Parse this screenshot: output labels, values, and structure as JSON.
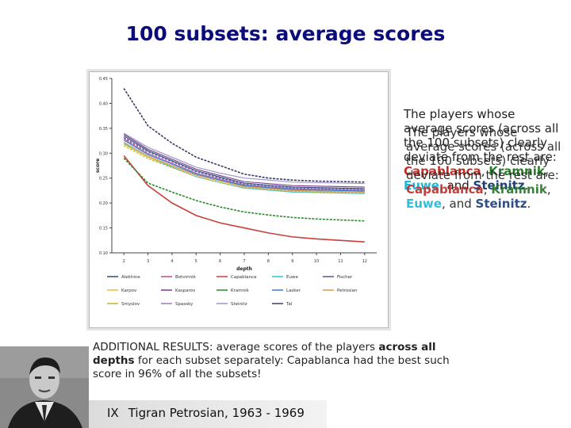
{
  "title": "100 subsets: average scores",
  "side_text": {
    "intro": "The players whose average scores (across all the 100 subsets) clearly deviate from the rest are:",
    "player1": "Capablanca",
    "sep1": ",",
    "player2": "Kramnik",
    "sep2": ",",
    "player3": "Euwe",
    "sep3": ", and",
    "player4": "Steinitz",
    "end": "."
  },
  "additional": {
    "part1": "ADDITIONAL RESULTS: average scores of the players ",
    "bold": "across all depths",
    "part2": " for each subset separately: Capablanca had the best such score in 96% of all the subsets!"
  },
  "caption": {
    "roman": "IX",
    "text": "Tigran Petrosian, 1963 - 1969"
  },
  "chart_data": {
    "type": "line",
    "title": "",
    "xlabel": "depth",
    "ylabel": "score",
    "x": [
      2,
      3,
      4,
      5,
      6,
      7,
      8,
      9,
      10,
      11,
      12
    ],
    "xlim": [
      1.5,
      12.5
    ],
    "ylim": [
      0.1,
      0.45
    ],
    "yticks": [
      "0.10",
      "0.15",
      "0.20",
      "0.25",
      "0.30",
      "0.35",
      "0.40",
      "0.45"
    ],
    "xticks": [
      "2",
      "3",
      "4",
      "5",
      "6",
      "7",
      "8",
      "9",
      "10",
      "11",
      "12"
    ],
    "grid": false,
    "legend_position": "bottom",
    "series": [
      {
        "name": "Alekhine",
        "color": "#2a4d7a",
        "values": [
          0.335,
          0.305,
          0.285,
          0.265,
          0.252,
          0.24,
          0.236,
          0.232,
          0.231,
          0.23,
          0.229
        ]
      },
      {
        "name": "Botvinnik",
        "color": "#c04a8a",
        "values": [
          0.33,
          0.3,
          0.28,
          0.26,
          0.247,
          0.236,
          0.232,
          0.228,
          0.227,
          0.226,
          0.225
        ]
      },
      {
        "name": "Capablanca",
        "color": "#c8403a",
        "values": [
          0.295,
          0.235,
          0.2,
          0.175,
          0.16,
          0.15,
          0.14,
          0.132,
          0.128,
          0.125,
          0.122
        ]
      },
      {
        "name": "Euwe",
        "color": "#2ec0e0",
        "values": [
          0.32,
          0.292,
          0.272,
          0.253,
          0.241,
          0.23,
          0.226,
          0.222,
          0.221,
          0.22,
          0.219
        ]
      },
      {
        "name": "Fischer",
        "color": "#6a4aa0",
        "values": [
          0.332,
          0.303,
          0.283,
          0.263,
          0.25,
          0.238,
          0.234,
          0.23,
          0.229,
          0.228,
          0.227
        ]
      },
      {
        "name": "Karpov",
        "color": "#e0c040",
        "values": [
          0.318,
          0.292,
          0.274,
          0.256,
          0.244,
          0.233,
          0.229,
          0.225,
          0.224,
          0.223,
          0.222
        ]
      },
      {
        "name": "Kasparov",
        "color": "#7a3a8a",
        "values": [
          0.338,
          0.308,
          0.288,
          0.268,
          0.255,
          0.243,
          0.239,
          0.235,
          0.234,
          0.233,
          0.232
        ]
      },
      {
        "name": "Kramnik",
        "color": "#2a8a2a",
        "values": [
          0.29,
          0.24,
          0.222,
          0.205,
          0.192,
          0.182,
          0.176,
          0.171,
          0.168,
          0.166,
          0.164
        ]
      },
      {
        "name": "Lasker",
        "color": "#3a7ad0",
        "values": [
          0.326,
          0.297,
          0.278,
          0.258,
          0.246,
          0.235,
          0.231,
          0.227,
          0.226,
          0.225,
          0.224
        ]
      },
      {
        "name": "Petrosian",
        "color": "#d89a50",
        "values": [
          0.322,
          0.294,
          0.275,
          0.256,
          0.244,
          0.233,
          0.229,
          0.225,
          0.224,
          0.223,
          0.222
        ]
      },
      {
        "name": "Smyslov",
        "color": "#c0b030",
        "values": [
          0.315,
          0.289,
          0.271,
          0.253,
          0.241,
          0.231,
          0.227,
          0.223,
          0.222,
          0.221,
          0.22
        ]
      },
      {
        "name": "Spassky",
        "color": "#9a7ab8",
        "values": [
          0.328,
          0.299,
          0.28,
          0.26,
          0.248,
          0.237,
          0.233,
          0.229,
          0.228,
          0.227,
          0.226
        ]
      },
      {
        "name": "Steinitz",
        "color": "#9a92c8",
        "values": [
          0.34,
          0.312,
          0.292,
          0.272,
          0.26,
          0.25,
          0.246,
          0.242,
          0.241,
          0.24,
          0.239
        ]
      },
      {
        "name": "Tal",
        "color": "#3a3a6a",
        "values": [
          0.43,
          0.355,
          0.32,
          0.292,
          0.275,
          0.258,
          0.25,
          0.246,
          0.244,
          0.243,
          0.242
        ]
      }
    ]
  }
}
